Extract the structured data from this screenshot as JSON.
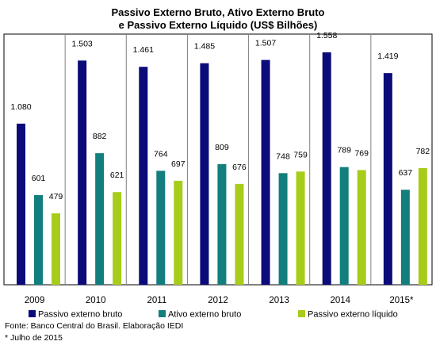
{
  "chart_data": {
    "type": "bar",
    "title_line1": "Passivo Externo Bruto, Ativo Externo Bruto",
    "title_line2": "e Passivo Externo Líquido  (US$ Bilhões)",
    "categories": [
      "2009",
      "2010",
      "2011",
      "2012",
      "2013",
      "2014",
      "2015*"
    ],
    "series": [
      {
        "name": "Passivo externo bruto",
        "color": "#0b0b7a",
        "values": [
          1080,
          1503,
          1461,
          1485,
          1507,
          1558,
          1419
        ],
        "labels": [
          "1.080",
          "1.503",
          "1.461",
          "1.485",
          "1.507",
          "1.558",
          "1.419"
        ]
      },
      {
        "name": "Ativo externo bruto",
        "color": "#137e7e",
        "values": [
          601,
          882,
          764,
          809,
          748,
          789,
          637
        ],
        "labels": [
          "601",
          "882",
          "764",
          "809",
          "748",
          "789",
          "637"
        ]
      },
      {
        "name": "Passivo externo líquido",
        "color": "#a8cc1a",
        "values": [
          479,
          621,
          697,
          676,
          759,
          769,
          782
        ],
        "labels": [
          "479",
          "621",
          "697",
          "676",
          "759",
          "769",
          "782"
        ]
      }
    ],
    "ylim": [
      0,
      1600
    ],
    "grid": false,
    "legend": "bottom"
  },
  "footer": {
    "source": "Fonte: Banco Central do Brasil. Elaboração IEDI",
    "note": "* Julho de 2015"
  }
}
